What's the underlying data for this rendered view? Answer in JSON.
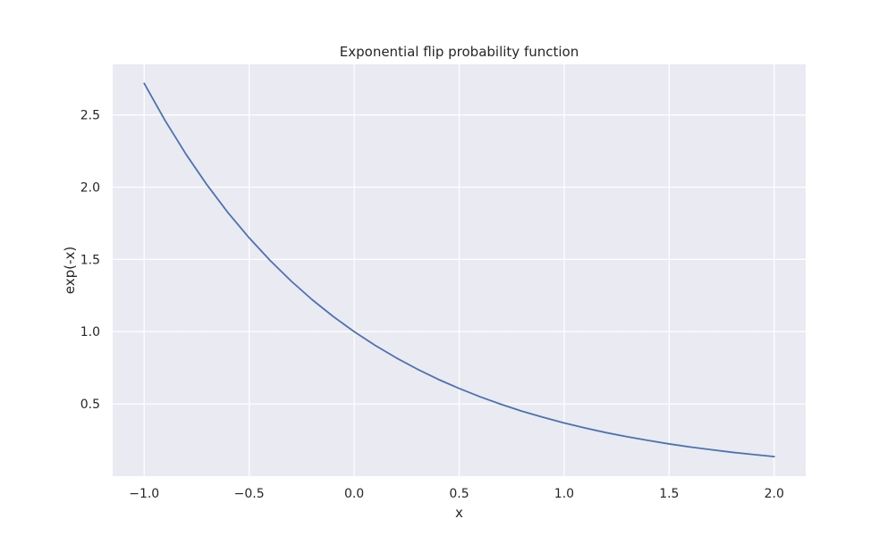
{
  "chart_data": {
    "type": "line",
    "title": "Exponential flip probability function",
    "xlabel": "x",
    "ylabel": "exp(-x)",
    "xlim": [
      -1.15,
      2.15
    ],
    "ylim": [
      0.0,
      2.85
    ],
    "xticks": [
      -1.0,
      -0.5,
      0.0,
      0.5,
      1.0,
      1.5,
      2.0
    ],
    "xtick_labels": [
      "−1.0",
      "−0.5",
      "0.0",
      "0.5",
      "1.0",
      "1.5",
      "2.0"
    ],
    "yticks": [
      0.5,
      1.0,
      1.5,
      2.0,
      2.5
    ],
    "ytick_labels": [
      "0.5",
      "1.0",
      "1.5",
      "2.0",
      "2.5"
    ],
    "grid": true,
    "series": [
      {
        "color": "#4c72b0",
        "x": [
          -1.0,
          -0.9,
          -0.8,
          -0.7,
          -0.6,
          -0.5,
          -0.4,
          -0.3,
          -0.2,
          -0.1,
          0.0,
          0.1,
          0.2,
          0.3,
          0.4,
          0.5,
          0.6,
          0.7,
          0.8,
          0.9,
          1.0,
          1.1,
          1.2,
          1.3,
          1.4,
          1.5,
          1.6,
          1.7,
          1.8,
          1.9,
          2.0
        ],
        "y": [
          2.718,
          2.46,
          2.226,
          2.014,
          1.822,
          1.649,
          1.492,
          1.35,
          1.221,
          1.105,
          1.0,
          0.905,
          0.819,
          0.741,
          0.67,
          0.607,
          0.549,
          0.497,
          0.449,
          0.407,
          0.368,
          0.333,
          0.301,
          0.273,
          0.247,
          0.223,
          0.202,
          0.183,
          0.165,
          0.15,
          0.135
        ]
      }
    ]
  },
  "style": {
    "plot_background": "#eaeaf2",
    "grid_color": "#ffffff",
    "text_color": "#262626"
  }
}
